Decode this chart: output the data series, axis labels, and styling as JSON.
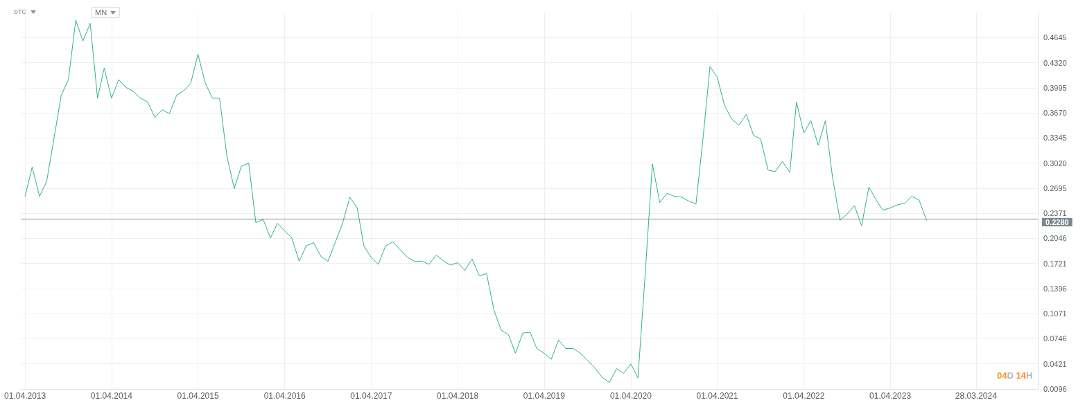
{
  "chart_data": {
    "type": "line",
    "x": [
      "2013-04",
      "2013-05",
      "2013-06",
      "2013-07",
      "2013-08",
      "2013-09",
      "2013-10",
      "2013-11",
      "2013-12",
      "2014-01",
      "2014-02",
      "2014-03",
      "2014-04",
      "2014-05",
      "2014-06",
      "2014-07",
      "2014-08",
      "2014-09",
      "2014-10",
      "2014-11",
      "2014-12",
      "2015-01",
      "2015-02",
      "2015-03",
      "2015-04",
      "2015-05",
      "2015-06",
      "2015-07",
      "2015-08",
      "2015-09",
      "2015-10",
      "2015-11",
      "2015-12",
      "2016-01",
      "2016-02",
      "2016-03",
      "2016-04",
      "2016-05",
      "2016-06",
      "2016-07",
      "2016-08",
      "2016-09",
      "2016-10",
      "2016-11",
      "2016-12",
      "2017-01",
      "2017-02",
      "2017-03",
      "2017-04",
      "2017-05",
      "2017-06",
      "2017-07",
      "2017-08",
      "2017-09",
      "2017-10",
      "2017-11",
      "2017-12",
      "2018-01",
      "2018-02",
      "2018-03",
      "2018-04",
      "2018-05",
      "2018-06",
      "2018-07",
      "2018-08",
      "2018-09",
      "2018-10",
      "2018-11",
      "2018-12",
      "2019-01",
      "2019-02",
      "2019-03",
      "2019-04",
      "2019-05",
      "2019-06",
      "2019-07",
      "2019-08",
      "2019-09",
      "2019-10",
      "2019-11",
      "2019-12",
      "2020-01",
      "2020-02",
      "2020-03",
      "2020-04",
      "2020-05",
      "2020-06",
      "2020-07",
      "2020-08",
      "2020-09",
      "2020-10",
      "2020-11",
      "2020-12",
      "2021-01",
      "2021-02",
      "2021-03",
      "2021-04",
      "2021-05",
      "2021-06",
      "2021-07",
      "2021-08",
      "2021-09",
      "2021-10",
      "2021-11",
      "2021-12",
      "2022-01",
      "2022-02",
      "2022-03",
      "2022-04",
      "2022-05",
      "2022-06",
      "2022-07",
      "2022-08",
      "2022-09",
      "2022-10",
      "2022-11",
      "2022-12",
      "2023-01",
      "2023-02",
      "2023-03",
      "2023-04",
      "2023-05",
      "2023-06",
      "2023-07",
      "2023-08",
      "2023-09"
    ],
    "series": [
      {
        "color": "#2eb47a",
        "values": [
          0.259,
          0.297,
          0.259,
          0.278,
          0.334,
          0.39,
          0.41,
          0.487,
          0.46,
          0.483,
          0.386,
          0.425,
          0.386,
          0.41,
          0.4,
          0.395,
          0.386,
          0.381,
          0.361,
          0.371,
          0.366,
          0.39,
          0.396,
          0.405,
          0.443,
          0.406,
          0.386,
          0.386,
          0.311,
          0.269,
          0.298,
          0.302,
          0.225,
          0.229,
          0.205,
          0.224,
          0.214,
          0.205,
          0.175,
          0.195,
          0.199,
          0.181,
          0.175,
          0.2,
          0.224,
          0.258,
          0.244,
          0.195,
          0.18,
          0.171,
          0.195,
          0.2,
          0.19,
          0.18,
          0.175,
          0.175,
          0.171,
          0.183,
          0.175,
          0.17,
          0.173,
          0.163,
          0.178,
          0.156,
          0.159,
          0.112,
          0.086,
          0.08,
          0.056,
          0.082,
          0.083,
          0.062,
          0.056,
          0.048,
          0.073,
          0.062,
          0.062,
          0.056,
          0.047,
          0.037,
          0.025,
          0.018,
          0.036,
          0.03,
          0.042,
          0.024,
          0.16,
          0.301,
          0.251,
          0.263,
          0.259,
          0.258,
          0.253,
          0.249,
          0.338,
          0.427,
          0.413,
          0.377,
          0.359,
          0.351,
          0.365,
          0.338,
          0.333,
          0.293,
          0.291,
          0.304,
          0.29,
          0.381,
          0.341,
          0.357,
          0.325,
          0.357,
          0.282,
          0.228,
          0.236,
          0.247,
          0.221,
          0.271,
          0.254,
          0.241,
          0.244,
          0.248,
          0.25,
          0.259,
          0.254,
          0.228
        ]
      }
    ],
    "xlim": [
      "2013-03-14",
      "2024-12-14"
    ],
    "xticks": [
      {
        "value": "2013-04-01",
        "label": "01.04.2013"
      },
      {
        "value": "2014-04-01",
        "label": "01.04.2014"
      },
      {
        "value": "2015-04-01",
        "label": "01.04.2015"
      },
      {
        "value": "2016-04-01",
        "label": "01.04.2016"
      },
      {
        "value": "2017-04-01",
        "label": "01.04.2017"
      },
      {
        "value": "2018-04-01",
        "label": "01.04.2018"
      },
      {
        "value": "2019-04-01",
        "label": "01.04.2019"
      },
      {
        "value": "2020-04-01",
        "label": "01.04.2020"
      },
      {
        "value": "2021-04-01",
        "label": "01.04.2021"
      },
      {
        "value": "2022-04-01",
        "label": "01.04.2022"
      },
      {
        "value": "2023-04-01",
        "label": "01.04.2023"
      },
      {
        "value": "2024-03-28",
        "label": "28.03.2024"
      }
    ],
    "ylim": [
      0.0096,
      0.497
    ],
    "yticks": [
      0.0096,
      0.0421,
      0.0746,
      0.1071,
      0.1396,
      0.1721,
      0.2046,
      0.2371,
      0.2695,
      {
        "value": 0.302,
        "label": "0.3020"
      },
      0.3345,
      {
        "value": 0.367,
        "label": "0.3670"
      },
      0.3995,
      {
        "value": 0.432,
        "label": "0.4320"
      },
      0.4645
    ],
    "grid": true,
    "marker": "none",
    "line_style": "solid",
    "ref_lines": [
      {
        "axis": "y",
        "value": 0.228,
        "label": "0.2280",
        "color": "#7b878b"
      }
    ],
    "annotations": [
      "STC",
      "MN",
      "04D 14H"
    ]
  }
}
